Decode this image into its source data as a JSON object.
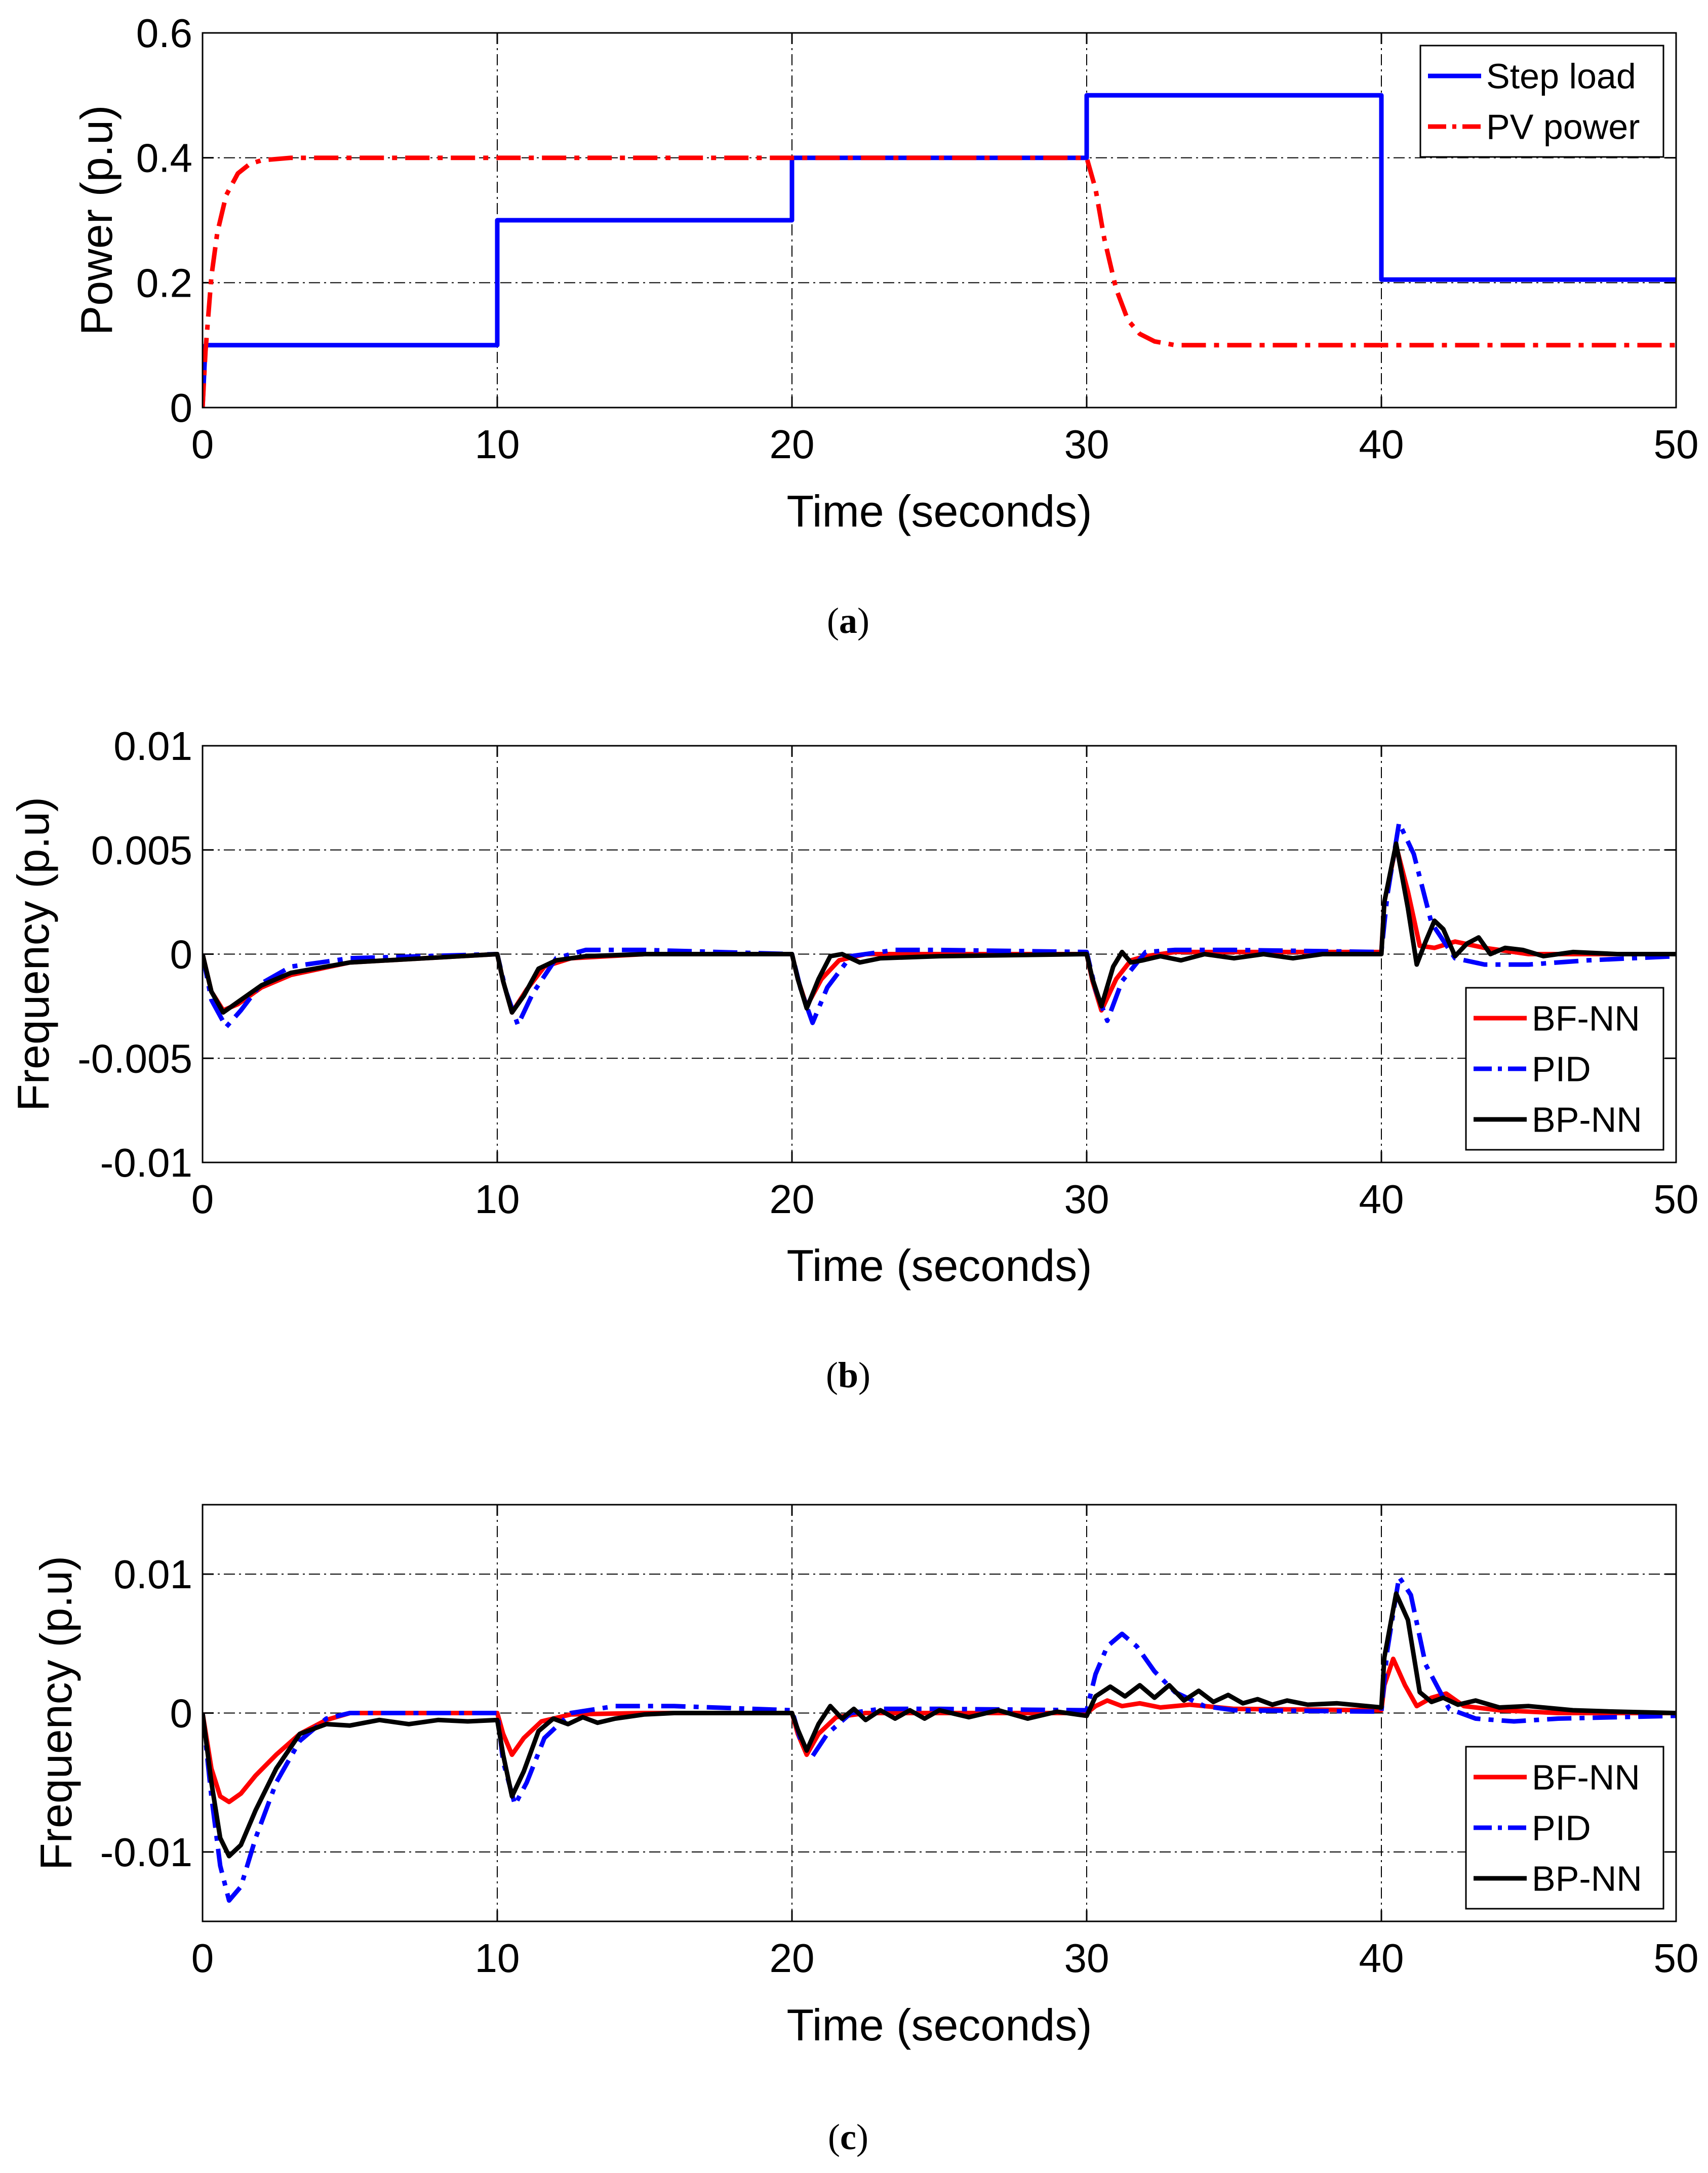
{
  "chart_data": [
    {
      "type": "line",
      "panel": "a",
      "caption_letter": "a",
      "xlabel": "Time (seconds)",
      "ylabel": "Power (p.u)",
      "xlim": [
        0,
        50
      ],
      "ylim": [
        0,
        0.6
      ],
      "xticks": [
        0,
        10,
        20,
        30,
        40,
        50
      ],
      "yticks": [
        0,
        0.2,
        0.4,
        0.6
      ],
      "ytick_labels": [
        "0",
        "0.2",
        "0.4",
        "0.6"
      ],
      "grid": true,
      "legend_position": "top-right",
      "series": [
        {
          "name": "Step load",
          "color": "#0000ff",
          "style": "solid",
          "x": [
            0,
            0.1,
            10,
            10,
            20,
            20,
            30,
            30,
            40,
            40,
            50
          ],
          "y": [
            0,
            0.1,
            0.1,
            0.3,
            0.3,
            0.4,
            0.4,
            0.5,
            0.5,
            0.205,
            0.205
          ]
        },
        {
          "name": "PV power",
          "color": "#ff0000",
          "style": "dashdot",
          "x": [
            0,
            0.1,
            0.3,
            0.5,
            0.8,
            1.2,
            1.6,
            2,
            3,
            30,
            30.3,
            30.6,
            31,
            31.4,
            31.8,
            32.3,
            33,
            40,
            50
          ],
          "y": [
            0,
            0.09,
            0.21,
            0.28,
            0.34,
            0.375,
            0.39,
            0.396,
            0.4,
            0.4,
            0.35,
            0.27,
            0.19,
            0.14,
            0.118,
            0.106,
            0.1,
            0.1,
            0.1
          ]
        }
      ]
    },
    {
      "type": "line",
      "panel": "b",
      "caption_letter": "b",
      "xlabel": "Time (seconds)",
      "ylabel": "Frequency (p.u)",
      "xlim": [
        0,
        50
      ],
      "ylim": [
        -0.01,
        0.01
      ],
      "xticks": [
        0,
        10,
        20,
        30,
        40,
        50
      ],
      "yticks": [
        -0.01,
        -0.005,
        0,
        0.005,
        0.01
      ],
      "ytick_labels": [
        "-0.01",
        "-0.005",
        "0",
        "0.005",
        "0.01"
      ],
      "grid": true,
      "legend_position": "bottom-right",
      "series": [
        {
          "name": "BF-NN",
          "color": "#ff0000",
          "style": "solid",
          "x": [
            0,
            0.3,
            0.7,
            1.2,
            2,
            3,
            5,
            10,
            10.2,
            10.5,
            11,
            11.6,
            12.5,
            15,
            20,
            20.2,
            20.5,
            21,
            21.6,
            22.5,
            25,
            30,
            30.2,
            30.5,
            31,
            31.5,
            32,
            33,
            35,
            40,
            40.1,
            40.5,
            40.9,
            41.3,
            41.8,
            42.5,
            43.5,
            45,
            50
          ],
          "y": [
            0,
            -0.0018,
            -0.0027,
            -0.0024,
            -0.0016,
            -0.001,
            -0.0004,
            0,
            -0.0013,
            -0.0028,
            -0.0017,
            -0.0006,
            -0.0002,
            0,
            0,
            -0.0012,
            -0.0025,
            -0.0012,
            -0.0003,
            0,
            0,
            0,
            -0.0013,
            -0.0027,
            -0.0012,
            -0.0003,
            -0.0001,
            0.0001,
            0.0001,
            0.0001,
            0.0025,
            0.0052,
            0.003,
            0.0004,
            0.0003,
            0.0006,
            0.0003,
            0,
            0
          ]
        },
        {
          "name": "PID",
          "color": "#0000ff",
          "style": "dashdot",
          "x": [
            0,
            0.3,
            0.8,
            1.3,
            2,
            3,
            5,
            10,
            10.3,
            10.7,
            11.2,
            12,
            13,
            15,
            20,
            20.3,
            20.7,
            21.2,
            22,
            23.5,
            25,
            30,
            30.3,
            30.7,
            31.2,
            32,
            33,
            35,
            40,
            40.2,
            40.6,
            41.1,
            41.7,
            42.5,
            43.5,
            45,
            47,
            50
          ],
          "y": [
            0,
            -0.0022,
            -0.0035,
            -0.0027,
            -0.0014,
            -0.0006,
            -0.0002,
            0,
            -0.0018,
            -0.0034,
            -0.0019,
            -0.0002,
            0.0002,
            0.0002,
            0,
            -0.0017,
            -0.0033,
            -0.0016,
            -0.0001,
            0.0002,
            0.0002,
            0.0001,
            -0.0017,
            -0.0032,
            -0.0013,
            0.0001,
            0.0002,
            0.0002,
            0.0001,
            0.0028,
            0.0063,
            0.0048,
            0.0015,
            -0.0002,
            -0.0005,
            -0.0005,
            -0.0003,
            -0.0001
          ]
        },
        {
          "name": "BP-NN",
          "color": "#000000",
          "style": "solid",
          "x": [
            0,
            0.3,
            0.7,
            1.2,
            2,
            3,
            5,
            10,
            10.2,
            10.5,
            10.9,
            11.4,
            12,
            13,
            15,
            20,
            20.2,
            20.5,
            20.9,
            21.3,
            21.7,
            22.3,
            23,
            25,
            30,
            30.2,
            30.5,
            30.9,
            31.2,
            31.5,
            31.9,
            32.5,
            33.2,
            34,
            35,
            36,
            37,
            38,
            40,
            40.1,
            40.5,
            40.9,
            41.2,
            41.5,
            41.8,
            42.1,
            42.5,
            42.9,
            43.3,
            43.7,
            44.2,
            44.8,
            45.5,
            46.5,
            48,
            50
          ],
          "y": [
            0,
            -0.0018,
            -0.0028,
            -0.0023,
            -0.0015,
            -0.0009,
            -0.0004,
            0,
            -0.0013,
            -0.0028,
            -0.002,
            -0.0007,
            -0.0003,
            -0.0001,
            0,
            0,
            -0.0012,
            -0.0026,
            -0.0012,
            -0.0001,
            0,
            -0.0004,
            -0.0002,
            -0.0001,
            0,
            -0.0012,
            -0.0025,
            -0.0006,
            0.0001,
            -0.0004,
            -0.0003,
            -0.0001,
            -0.0003,
            0,
            -0.0002,
            0,
            -0.0002,
            0,
            0,
            0.0025,
            0.0053,
            0.0022,
            -0.0005,
            0.0006,
            0.0016,
            0.0012,
            -0.0001,
            0.0005,
            0.0008,
            0,
            0.0003,
            0.0002,
            -0.0001,
            0.0001,
            0,
            0
          ]
        }
      ]
    },
    {
      "type": "line",
      "panel": "c",
      "caption_letter": "c",
      "xlabel": "Time (seconds)",
      "ylabel": "Frequency  (p.u)",
      "xlim": [
        0,
        50
      ],
      "ylim": [
        -0.015,
        0.015
      ],
      "xticks": [
        0,
        10,
        20,
        30,
        40,
        50
      ],
      "yticks": [
        -0.01,
        0,
        0.01
      ],
      "ytick_labels": [
        "-0.01",
        "0",
        "0.01"
      ],
      "grid": true,
      "legend_position": "bottom-right",
      "series": [
        {
          "name": "BF-NN",
          "color": "#ff0000",
          "style": "solid",
          "x": [
            0,
            0.3,
            0.6,
            0.9,
            1.3,
            1.8,
            2.5,
            3.3,
            4.2,
            5,
            10,
            10.2,
            10.5,
            10.9,
            11.5,
            12.5,
            15,
            20,
            20.2,
            20.5,
            20.9,
            21.5,
            22.5,
            25,
            30,
            30.3,
            30.7,
            31.2,
            31.8,
            32.5,
            33.5,
            35,
            40,
            40.1,
            40.4,
            40.8,
            41.2,
            41.7,
            42.2,
            42.8,
            44,
            46,
            50
          ],
          "y": [
            0,
            -0.004,
            -0.006,
            -0.0064,
            -0.0058,
            -0.0045,
            -0.003,
            -0.0015,
            -0.0005,
            0,
            0,
            -0.0015,
            -0.003,
            -0.0018,
            -0.0006,
            -0.0001,
            0,
            0,
            -0.0015,
            -0.003,
            -0.0015,
            -0.0003,
            0,
            0,
            0,
            0.0005,
            0.0009,
            0.0005,
            0.0007,
            0.0004,
            0.0006,
            0.0003,
            0.0002,
            0.002,
            0.0039,
            0.002,
            0.0005,
            0.0011,
            0.0014,
            0.0005,
            0.0002,
            0,
            0
          ]
        },
        {
          "name": "PID",
          "color": "#0000ff",
          "style": "dashdot",
          "x": [
            0,
            0.3,
            0.6,
            0.9,
            1.3,
            1.8,
            2.5,
            3.3,
            4.2,
            5,
            10,
            10.2,
            10.6,
            11,
            11.6,
            12.5,
            14,
            16,
            20,
            20.3,
            20.7,
            21.2,
            22,
            23,
            25,
            30,
            30.3,
            30.7,
            31.2,
            31.7,
            32.3,
            33,
            34,
            35,
            40,
            40.2,
            40.6,
            41,
            41.5,
            42.3,
            43.2,
            44.5,
            46,
            48,
            50
          ],
          "y": [
            0,
            -0.006,
            -0.011,
            -0.0135,
            -0.0125,
            -0.009,
            -0.005,
            -0.002,
            -0.0004,
            0,
            0,
            -0.0035,
            -0.0066,
            -0.005,
            -0.0018,
            0,
            0.0005,
            0.0005,
            0.0002,
            -0.002,
            -0.0031,
            -0.0015,
            0,
            0.0003,
            0.0003,
            0.0002,
            0.0028,
            0.0048,
            0.0057,
            0.0048,
            0.003,
            0.0015,
            0.0005,
            0.0002,
            0.0001,
            0.0045,
            0.0098,
            0.0085,
            0.0035,
            0.0003,
            -0.0004,
            -0.0006,
            -0.0004,
            -0.0003,
            -0.0002
          ]
        },
        {
          "name": "BP-NN",
          "color": "#000000",
          "style": "solid",
          "x": [
            0,
            0.3,
            0.6,
            0.9,
            1.3,
            1.8,
            2.5,
            3.3,
            4.2,
            5,
            6,
            7,
            8,
            9,
            10,
            10.2,
            10.5,
            10.9,
            11.4,
            11.9,
            12.4,
            12.9,
            13.4,
            14,
            15,
            16,
            18,
            20,
            20.2,
            20.5,
            20.9,
            21.3,
            21.7,
            22.1,
            22.5,
            23,
            23.5,
            24,
            24.5,
            25,
            26,
            27,
            28,
            29,
            30,
            30.3,
            30.8,
            31.3,
            31.8,
            32.3,
            32.8,
            33.3,
            33.8,
            34.3,
            34.8,
            35.3,
            35.8,
            36.3,
            36.8,
            37.5,
            38.5,
            40,
            40.1,
            40.5,
            40.9,
            41.3,
            41.7,
            42.1,
            42.6,
            43.2,
            44,
            45,
            46.5,
            48,
            50
          ],
          "y": [
            0,
            -0.005,
            -0.009,
            -0.0103,
            -0.0095,
            -0.007,
            -0.004,
            -0.0015,
            -0.0008,
            -0.0009,
            -0.0005,
            -0.0008,
            -0.0005,
            -0.0006,
            -0.0005,
            -0.003,
            -0.006,
            -0.0042,
            -0.0013,
            -0.0004,
            -0.0008,
            -0.0003,
            -0.0007,
            -0.0004,
            -0.0001,
            0,
            0,
            0,
            -0.0012,
            -0.0027,
            -0.0008,
            0.0005,
            -0.0004,
            0.0003,
            -0.0005,
            0.0002,
            -0.0004,
            0.0002,
            -0.0004,
            0.0002,
            -0.0003,
            0.0002,
            -0.0004,
            0.0001,
            -0.0002,
            0.0012,
            0.0019,
            0.0012,
            0.002,
            0.0011,
            0.002,
            0.0009,
            0.0016,
            0.0008,
            0.0013,
            0.0007,
            0.001,
            0.0006,
            0.0009,
            0.0006,
            0.0007,
            0.0004,
            0.004,
            0.0086,
            0.0067,
            0.0015,
            0.0008,
            0.0011,
            0.0006,
            0.0009,
            0.0004,
            0.0005,
            0.0002,
            0.0001,
            0
          ]
        }
      ]
    }
  ]
}
